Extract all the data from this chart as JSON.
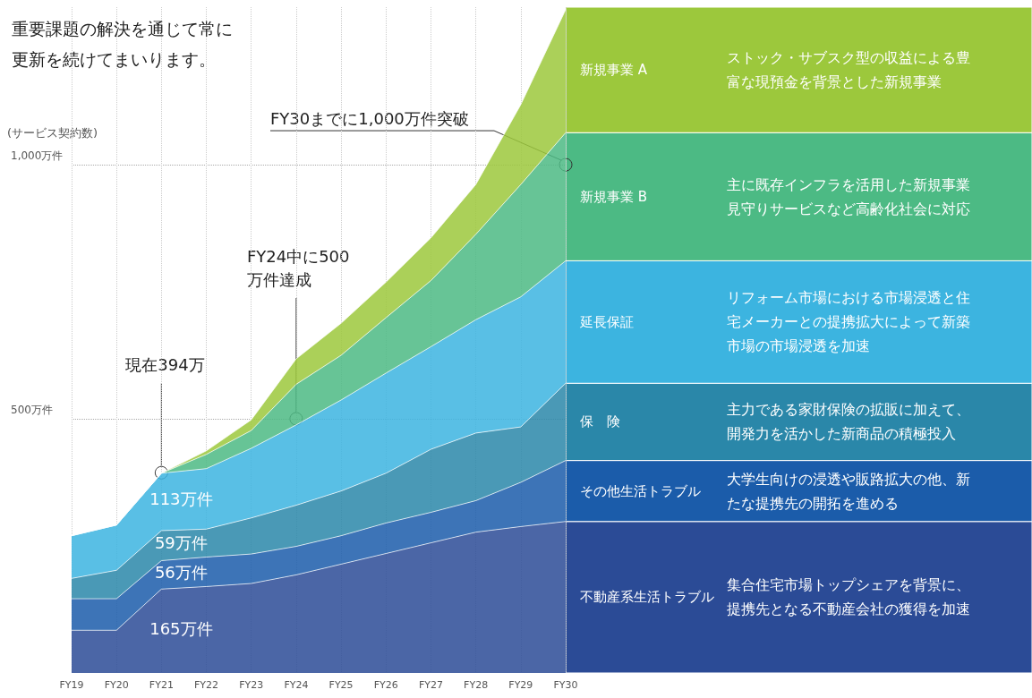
{
  "chart_data": {
    "type": "area",
    "title": "重要課題の解決を通じて常に更新を続けてまいります。",
    "ylabel": "(サービス契約数)",
    "categories": [
      "FY19",
      "FY20",
      "FY21",
      "FY22",
      "FY23",
      "FY24",
      "FY25",
      "FY26",
      "FY27",
      "FY28",
      "FY29",
      "FY30"
    ],
    "stacked": true,
    "grid": true,
    "ylim": [
      0,
      1310
    ],
    "yticks": [
      {
        "value": 500,
        "label": "500万件"
      },
      {
        "value": 1000,
        "label": "1,000万件"
      }
    ],
    "series": [
      {
        "name": "不動産系生活トラブル",
        "color": "#2b4b96",
        "values": [
          84,
          84,
          165,
          170,
          176,
          193,
          214,
          235,
          256,
          277,
          288,
          298
        ],
        "value_labels": [
          null,
          null,
          "165万件",
          null,
          null,
          null,
          null,
          null,
          null,
          null,
          null,
          null
        ]
      },
      {
        "name": "その他生活トラブル",
        "color": "#1b5caa",
        "values": [
          62,
          62,
          56,
          58,
          58,
          56,
          56,
          60,
          60,
          62,
          87,
          120
        ],
        "value_labels": [
          null,
          null,
          "56万件",
          null,
          null,
          null,
          null,
          null,
          null,
          null,
          null,
          null
        ]
      },
      {
        "name": "保　険",
        "color": "#2a87a9",
        "values": [
          40,
          56,
          59,
          55,
          71,
          81,
          88,
          98,
          124,
          133,
          109,
          152
        ],
        "value_labels": [
          null,
          null,
          "59万件",
          null,
          null,
          null,
          null,
          null,
          null,
          null,
          null,
          null
        ]
      },
      {
        "name": "延長保証",
        "color": "#3cb4e0",
        "values": [
          84,
          89,
          113,
          119,
          137,
          158,
          179,
          197,
          202,
          223,
          256,
          241
        ],
        "value_labels": [
          null,
          null,
          "113万件",
          null,
          null,
          null,
          null,
          null,
          null,
          null,
          null,
          null
        ]
      },
      {
        "name": "新規事業 B",
        "color": "#4cba84",
        "values": [
          0,
          0,
          0,
          28,
          35,
          80,
          88,
          109,
          130,
          168,
          221,
          252
        ]
      },
      {
        "name": "新規事業 A",
        "color": "#9cc83c",
        "values": [
          0,
          0,
          0,
          7,
          21,
          50,
          63,
          70,
          84,
          98,
          157,
          242
        ]
      }
    ],
    "annotations": [
      {
        "text": "現在394万",
        "x": "FY21",
        "y": 394
      },
      {
        "text": "FY24中に500万件達成",
        "x": "FY24",
        "y": 500
      },
      {
        "text": "FY30までに1,000万件突破",
        "x": "FY30",
        "y": 1000
      },
      "集合住宅市場トップシェアを背景に、提携先となる不動産会社の獲得を加速",
      "大学生向けの浸透や販路拡大の他、新たな提携先の開拓を進める",
      "主力である家財保険の拡販に加えて、開発力を活かした新商品の積極投入",
      "リフォーム市場における市場浸透と住宅メーカーとの提携拡大によって新築市場の市場浸透を加速",
      "主に既存インフラを活用した新規事業見守りサービスなど高齢化社会に対応",
      "ストック・サブスク型の収益による豊富な現預金を背景とした新規事業"
    ]
  }
}
